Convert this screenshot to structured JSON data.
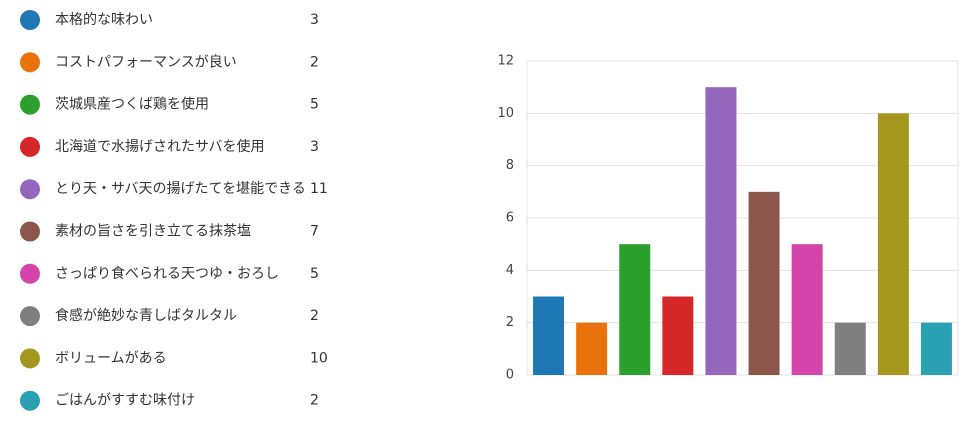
{
  "chart_data": {
    "type": "bar",
    "categories": [
      "本格的な味わい",
      "コストパフォーマンスが良い",
      "茨城県産つくば鶏を使用",
      "北海道で水揚げされたサバを使用",
      "とり天・サバ天の揚げたてを堪能できる",
      "素材の旨さを引き立てる抹茶塩",
      "さっぱり食べられる天つゆ・おろし",
      "食感が絶妙な青しばタルタル",
      "ボリュームがある",
      "ごはんがすすむ味付け"
    ],
    "values": [
      3,
      2,
      5,
      3,
      11,
      7,
      5,
      2,
      10,
      2
    ],
    "colors": [
      "#1f77b4",
      "#e8730c",
      "#2ca02c",
      "#d62728",
      "#9467bd",
      "#8c564b",
      "#d445ab",
      "#7f7f7f",
      "#a5961e",
      "#2aa1b3"
    ],
    "ylim": [
      0,
      12
    ],
    "yticks": [
      0,
      2,
      4,
      6,
      8,
      10,
      12
    ],
    "grid": true
  }
}
